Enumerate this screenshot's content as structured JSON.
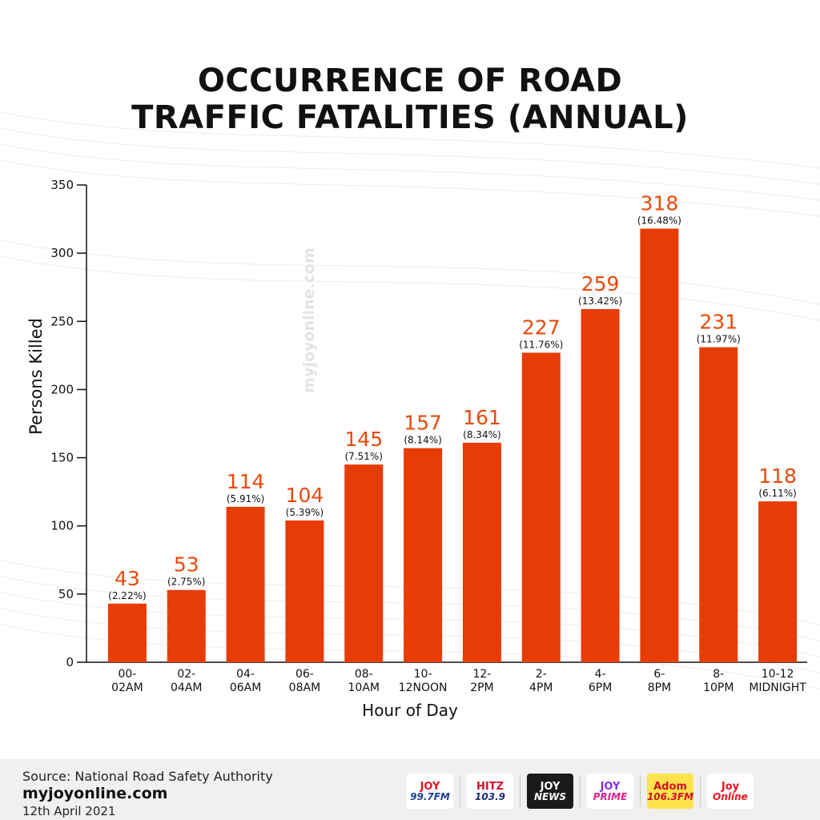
{
  "title_lines": [
    "OCCURRENCE OF ROAD",
    "TRAFFIC FATALITIES (ANNUAL)"
  ],
  "watermark": "myjoyonline.com",
  "colors": {
    "bar": "#e83c07",
    "value_label": "#e84a0c",
    "text": "#111111"
  },
  "chart_data": {
    "type": "bar",
    "title": "OCCURRENCE OF ROAD TRAFFIC FATALITIES (ANNUAL)",
    "xlabel": "Hour of Day",
    "ylabel": "Persons Killed",
    "ylim": [
      0,
      350
    ],
    "yticks": [
      0,
      50,
      100,
      150,
      200,
      250,
      300,
      350
    ],
    "grid": false,
    "legend": "none",
    "categories": [
      [
        "00-",
        "02AM"
      ],
      [
        "02-",
        "04AM"
      ],
      [
        "04-",
        "06AM"
      ],
      [
        "06-",
        "08AM"
      ],
      [
        "08-",
        "10AM"
      ],
      [
        "10-",
        "12NOON"
      ],
      [
        "12-",
        "2PM"
      ],
      [
        "2-",
        "4PM"
      ],
      [
        "4-",
        "6PM"
      ],
      [
        "6-",
        "8PM"
      ],
      [
        "8-",
        "10PM"
      ],
      [
        "10-12",
        "MIDNIGHT"
      ]
    ],
    "values": [
      43,
      53,
      114,
      104,
      145,
      157,
      161,
      227,
      259,
      318,
      231,
      118
    ],
    "percent_labels": [
      "(2.22%)",
      "(2.75%)",
      "(5.91%)",
      "(5.39%)",
      "(7.51%)",
      "(8.14%)",
      "(8.34%)",
      "(11.76%)",
      "(13.42%)",
      "(16.48%)",
      "(11.97%)",
      "(6.11%)"
    ]
  },
  "footer": {
    "source": "Source: National Road Safety Authority",
    "site": "myjoyonline.com",
    "date": "12th April 2021",
    "logos": [
      {
        "name": "joy-fm-logo",
        "line1": "JOY",
        "line2": "99.7FM",
        "bg": "#ffffff",
        "fg": "#e8141b",
        "fg2": "#1c3f94"
      },
      {
        "name": "hitz-fm-logo",
        "line1": "HITZ",
        "line2": "103.9",
        "bg": "#ffffff",
        "fg": "#d0112b",
        "fg2": "#1c2f7a"
      },
      {
        "name": "joy-news-logo",
        "line1": "JOY",
        "line2": "NEWS",
        "bg": "#1a1a1a",
        "fg": "#ffffff",
        "fg2": "#ffffff"
      },
      {
        "name": "joy-prime-logo",
        "line1": "JOY",
        "line2": "PRIME",
        "bg": "#ffffff",
        "fg": "#8a2be2",
        "fg2": "#e0218a"
      },
      {
        "name": "adom-fm-logo",
        "line1": "Adom",
        "line2": "106.3FM",
        "bg": "#ffe34d",
        "fg": "#d0112b",
        "fg2": "#d0112b"
      },
      {
        "name": "joy-online-logo",
        "line1": "Joy",
        "line2": "Online",
        "bg": "#ffffff",
        "fg": "#e8141b",
        "fg2": "#e8141b"
      }
    ]
  }
}
